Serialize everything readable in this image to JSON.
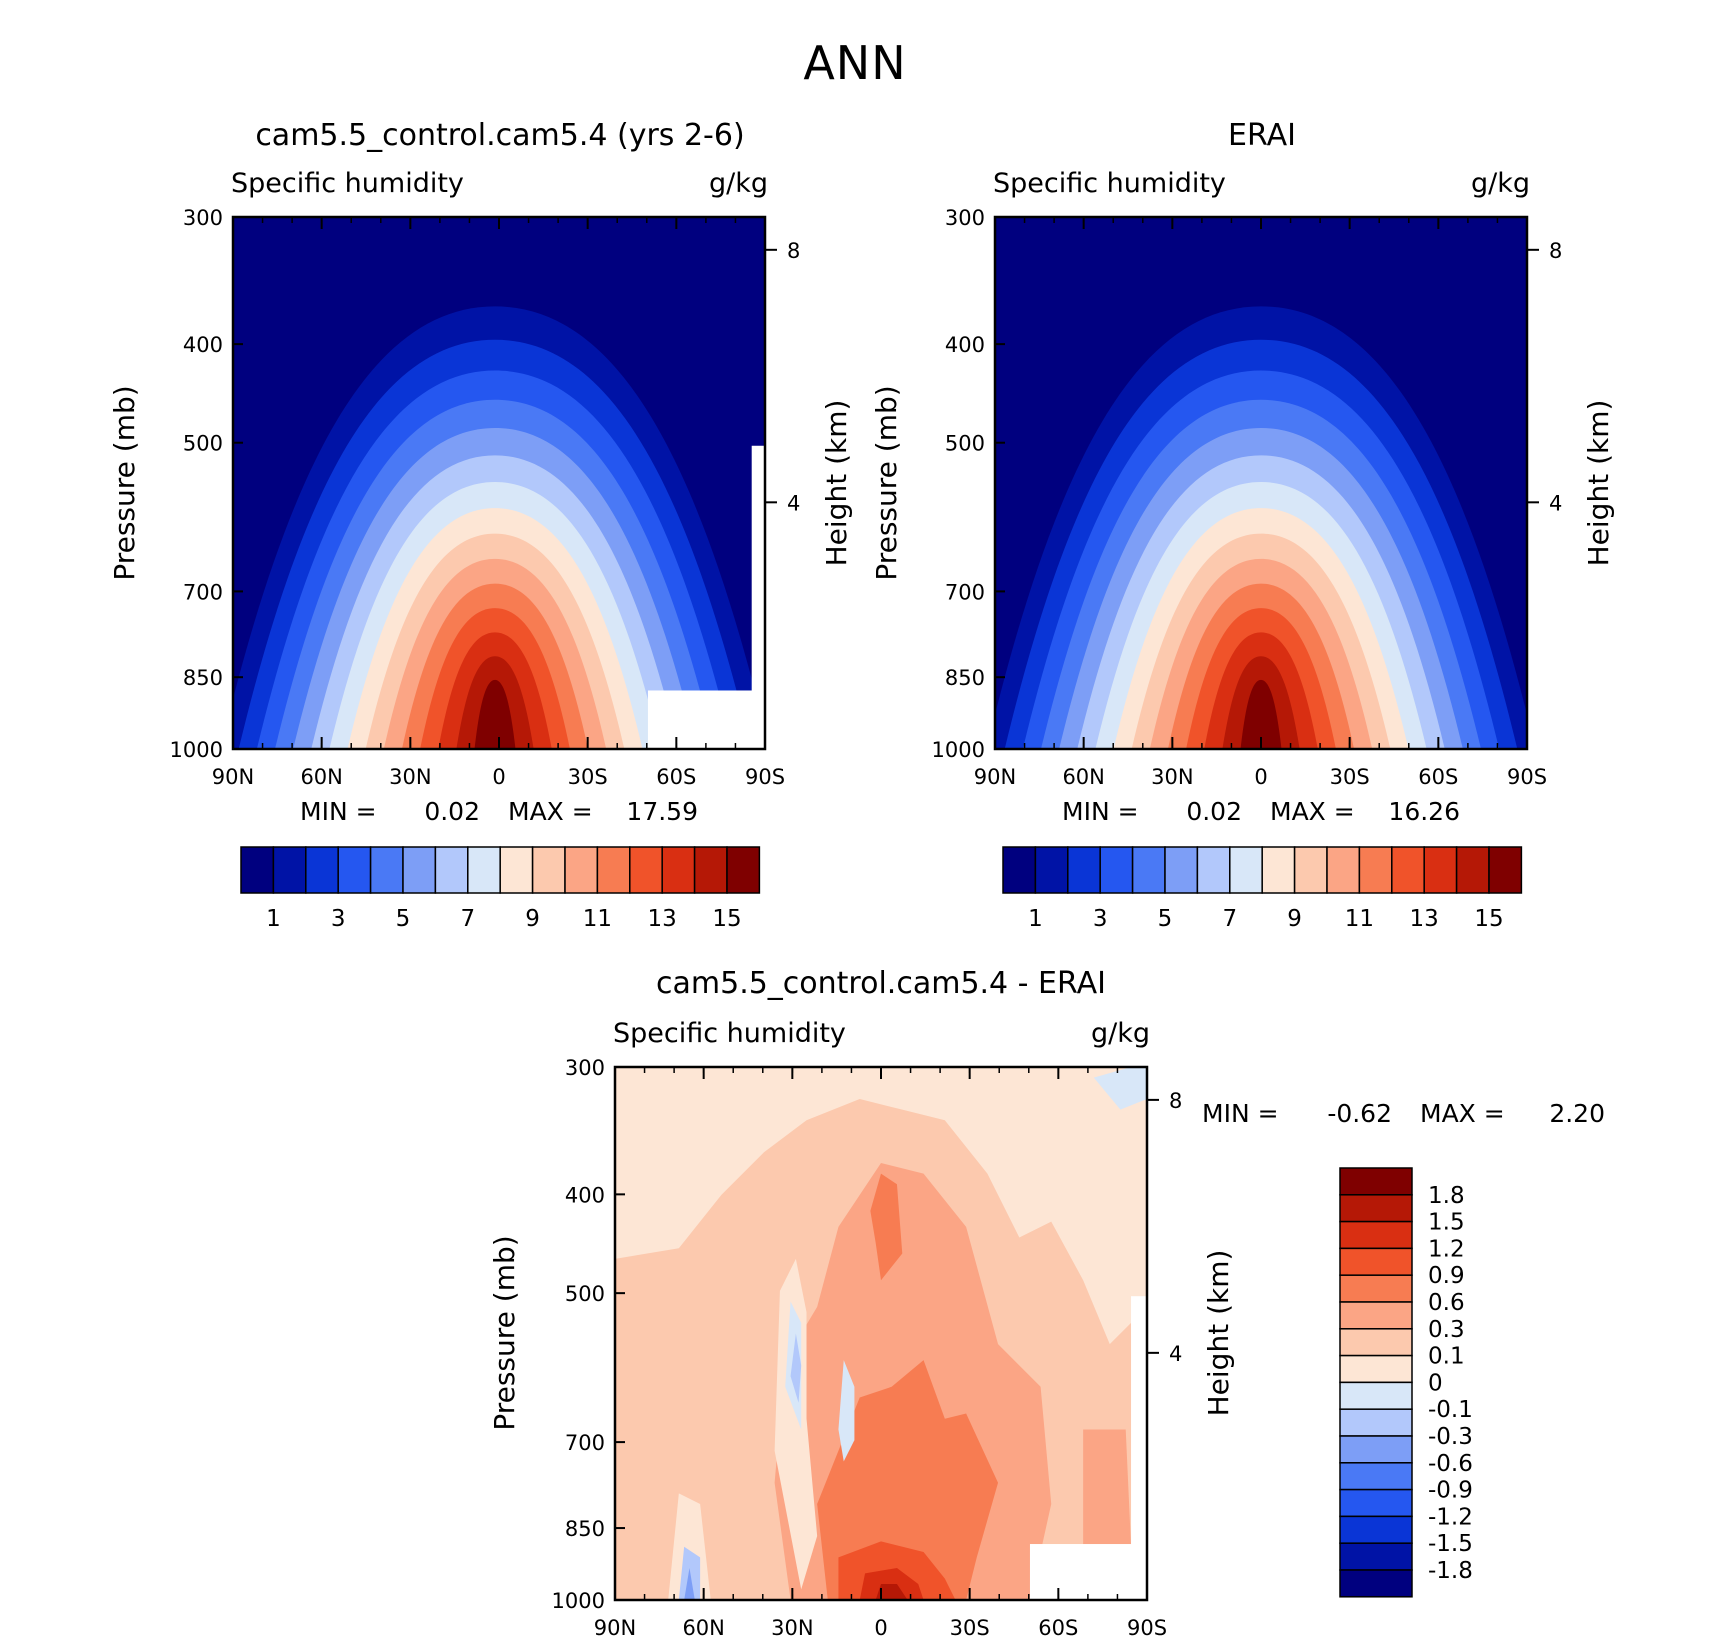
{
  "figure_title": "ANN",
  "colors": {
    "diff_levels": [
      "#00007F",
      "#0013A6",
      "#0A35D6",
      "#2557F0",
      "#4a79f5",
      "#7d9ef6",
      "#b2c8fb",
      "#d8e7f8",
      "#fde6d5",
      "#fcc9ae",
      "#fba585",
      "#f77c52",
      "#f0532a",
      "#d92f12",
      "#b51806",
      "#7f0000"
    ],
    "abs_levels": [
      "#00007F",
      "#0013A6",
      "#0A35D6",
      "#2557F0",
      "#4a79f5",
      "#7d9ef6",
      "#b2c8fb",
      "#d8e7f8",
      "#fde6d5",
      "#fcc9ae",
      "#fba585",
      "#f77c52",
      "#f0532a",
      "#d92f12",
      "#b51806",
      "#7f0000"
    ]
  },
  "chart_data": [
    {
      "type": "contour",
      "title": "cam5.5_control.cam5.4 (yrs 2-6)",
      "variable": "Specific humidity",
      "units": "g/kg",
      "xlabel": "",
      "ylabel": "Pressure (mb)",
      "ylabel_right": "Height (km)",
      "x_ticks": [
        "90N",
        "60N",
        "30N",
        "0",
        "30S",
        "60S",
        "90S"
      ],
      "y_ticks": [
        "300",
        "400",
        "500",
        "700",
        "850",
        "1000"
      ],
      "y_ticks_right": [
        "8",
        "4"
      ],
      "min_label": "MIN =",
      "min_value": "0.02",
      "max_label": "MAX =",
      "max_value": "17.59",
      "peak_value": 17.59,
      "colorbar_labels": [
        "1",
        "3",
        "5",
        "7",
        "9",
        "11",
        "13",
        "15"
      ],
      "levels": [
        1,
        2,
        3,
        4,
        5,
        6,
        7,
        8,
        9,
        10,
        11,
        12,
        13,
        14,
        15
      ]
    },
    {
      "type": "contour",
      "title": "ERAI",
      "variable": "Specific humidity",
      "units": "g/kg",
      "xlabel": "",
      "ylabel": "Pressure (mb)",
      "ylabel_right": "Height (km)",
      "x_ticks": [
        "90N",
        "60N",
        "30N",
        "0",
        "30S",
        "60S",
        "90S"
      ],
      "y_ticks": [
        "300",
        "400",
        "500",
        "700",
        "850",
        "1000"
      ],
      "y_ticks_right": [
        "8",
        "4"
      ],
      "min_label": "MIN =",
      "min_value": "0.02",
      "max_label": "MAX =",
      "max_value": "16.26",
      "peak_value": 16.26,
      "colorbar_labels": [
        "1",
        "3",
        "5",
        "7",
        "9",
        "11",
        "13",
        "15"
      ],
      "levels": [
        1,
        2,
        3,
        4,
        5,
        6,
        7,
        8,
        9,
        10,
        11,
        12,
        13,
        14,
        15
      ]
    },
    {
      "type": "contour",
      "title": "cam5.5_control.cam5.4 - ERAI",
      "variable": "Specific humidity",
      "units": "g/kg",
      "xlabel": "",
      "ylabel": "Pressure (mb)",
      "ylabel_right": "Height (km)",
      "x_ticks": [
        "90N",
        "60N",
        "30N",
        "0",
        "30S",
        "60S",
        "90S"
      ],
      "y_ticks": [
        "300",
        "400",
        "500",
        "700",
        "850",
        "1000"
      ],
      "y_ticks_right": [
        "8",
        "4"
      ],
      "min_label": "MIN =",
      "min_value": "-0.62",
      "max_label": "MAX =",
      "max_value": "2.20",
      "colorbar_labels": [
        "1.8",
        "1.5",
        "1.2",
        "0.9",
        "0.6",
        "0.3",
        "0.1",
        "0",
        "-0.1",
        "-0.3",
        "-0.6",
        "-0.9",
        "-1.2",
        "-1.5",
        "-1.8"
      ],
      "levels": [
        -1.8,
        -1.5,
        -1.2,
        -0.9,
        -0.6,
        -0.3,
        -0.1,
        0,
        0.1,
        0.3,
        0.6,
        0.9,
        1.2,
        1.5,
        1.8
      ]
    }
  ]
}
